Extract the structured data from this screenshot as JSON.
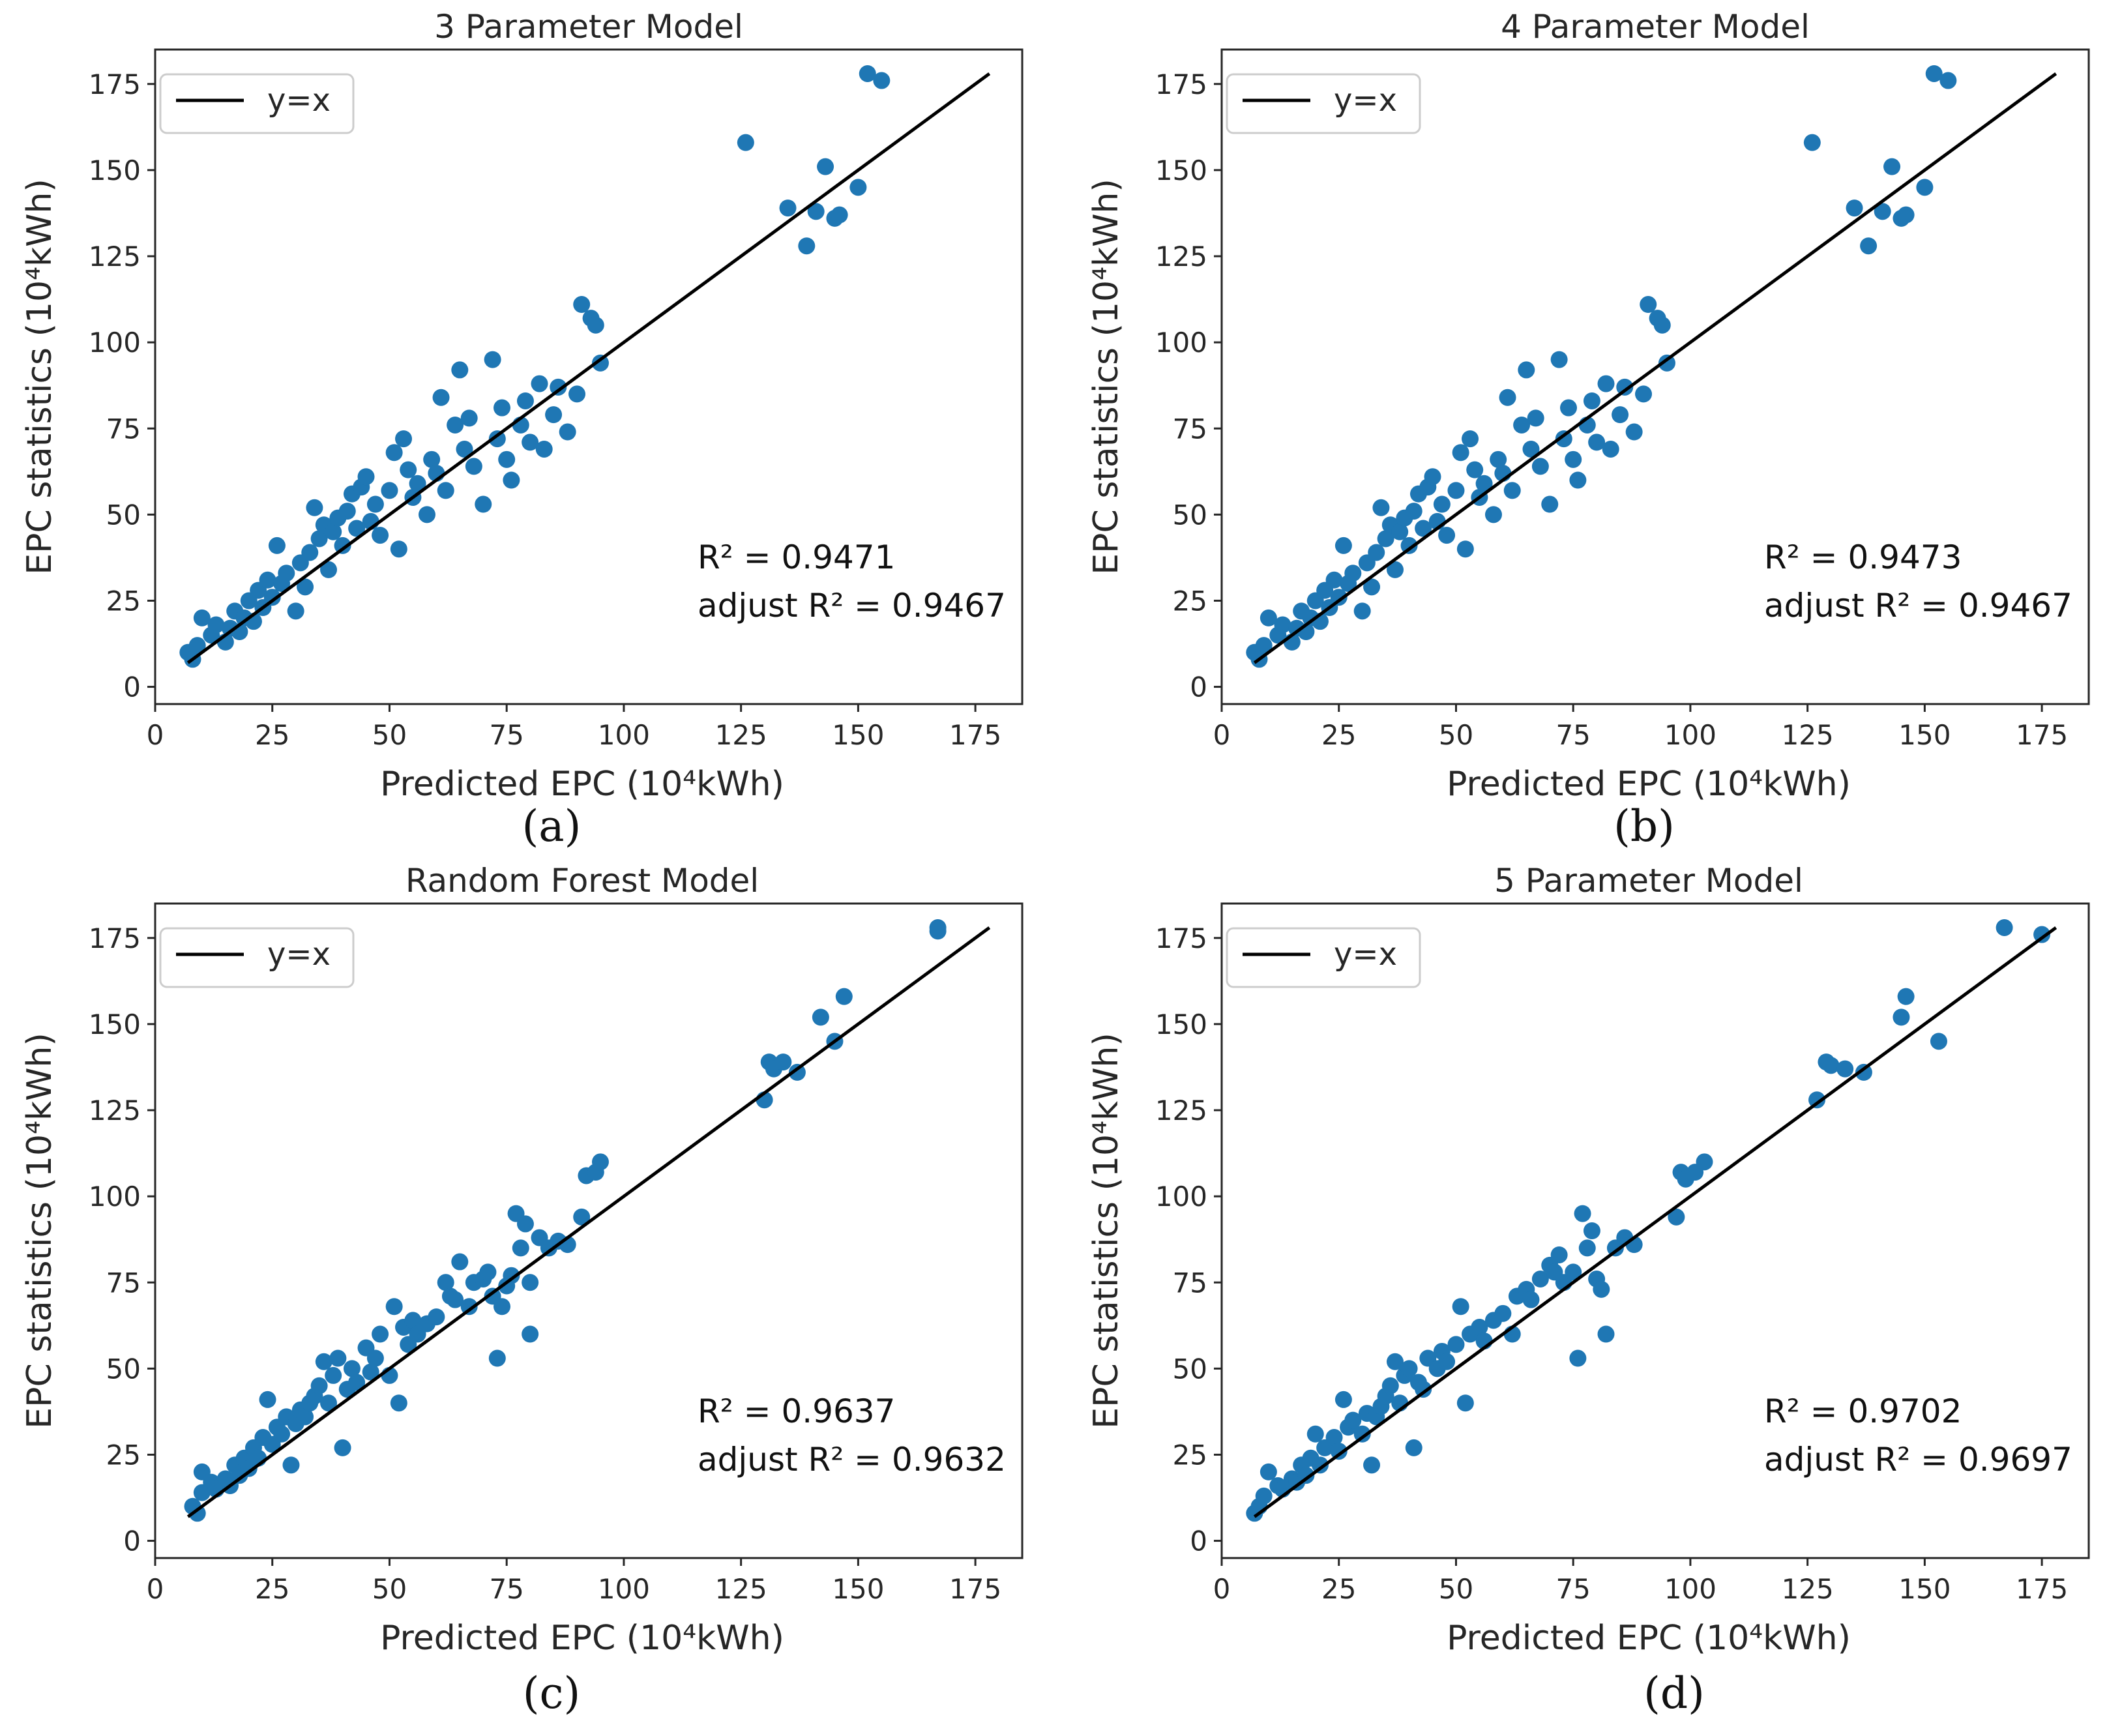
{
  "figure": {
    "panels": [
      {
        "caption": "(a)",
        "stats": {
          "r2": "R² = 0.9471",
          "adj": "adjust R² = 0.9467"
        }
      },
      {
        "caption": "(b)",
        "stats": {
          "r2": "R² = 0.9473",
          "adj": "adjust R² = 0.9467"
        }
      },
      {
        "caption": "(c)",
        "stats": {
          "r2": "R² = 0.9637",
          "adj": "adjust R² = 0.9632"
        }
      },
      {
        "caption": "(d)",
        "stats": {
          "r2": "R² = 0.9702",
          "adj": "adjust R² = 0.9697"
        }
      }
    ]
  },
  "colors": {
    "points": "#1f77b4",
    "line": "#000000",
    "axes": "#262626"
  },
  "chart_data": [
    {
      "type": "scatter",
      "title": "3 Parameter Model",
      "xlabel": "Predicted EPC (10⁴kWh)",
      "ylabel": "EPC statistics (10⁴kWh)",
      "xlim": [
        0,
        185
      ],
      "ylim": [
        -5,
        185
      ],
      "xticks": [
        0,
        25,
        50,
        75,
        100,
        125,
        150,
        175
      ],
      "yticks": [
        0,
        25,
        50,
        75,
        100,
        125,
        150,
        175
      ],
      "legend": {
        "label": "y=x",
        "position": "upper-left"
      },
      "reference_line": {
        "x": [
          7,
          178
        ],
        "y": [
          7,
          178
        ]
      },
      "points": [
        [
          7,
          10
        ],
        [
          8,
          8
        ],
        [
          9,
          12
        ],
        [
          10,
          20
        ],
        [
          12,
          15
        ],
        [
          13,
          18
        ],
        [
          15,
          13
        ],
        [
          16,
          17
        ],
        [
          17,
          22
        ],
        [
          18,
          16
        ],
        [
          19,
          20
        ],
        [
          20,
          25
        ],
        [
          21,
          19
        ],
        [
          22,
          28
        ],
        [
          23,
          23
        ],
        [
          24,
          31
        ],
        [
          25,
          26
        ],
        [
          26,
          41
        ],
        [
          27,
          30
        ],
        [
          28,
          33
        ],
        [
          30,
          22
        ],
        [
          31,
          36
        ],
        [
          32,
          29
        ],
        [
          33,
          39
        ],
        [
          34,
          52
        ],
        [
          35,
          43
        ],
        [
          36,
          47
        ],
        [
          37,
          34
        ],
        [
          38,
          45
        ],
        [
          39,
          49
        ],
        [
          40,
          41
        ],
        [
          41,
          51
        ],
        [
          42,
          56
        ],
        [
          43,
          46
        ],
        [
          44,
          58
        ],
        [
          45,
          61
        ],
        [
          46,
          48
        ],
        [
          47,
          53
        ],
        [
          48,
          44
        ],
        [
          50,
          57
        ],
        [
          51,
          68
        ],
        [
          52,
          40
        ],
        [
          53,
          72
        ],
        [
          54,
          63
        ],
        [
          55,
          55
        ],
        [
          56,
          59
        ],
        [
          58,
          50
        ],
        [
          59,
          66
        ],
        [
          60,
          62
        ],
        [
          61,
          84
        ],
        [
          62,
          57
        ],
        [
          64,
          76
        ],
        [
          65,
          92
        ],
        [
          66,
          69
        ],
        [
          67,
          78
        ],
        [
          68,
          64
        ],
        [
          70,
          53
        ],
        [
          72,
          95
        ],
        [
          73,
          72
        ],
        [
          74,
          81
        ],
        [
          75,
          66
        ],
        [
          76,
          60
        ],
        [
          78,
          76
        ],
        [
          79,
          83
        ],
        [
          80,
          71
        ],
        [
          82,
          88
        ],
        [
          83,
          69
        ],
        [
          85,
          79
        ],
        [
          86,
          87
        ],
        [
          88,
          74
        ],
        [
          90,
          85
        ],
        [
          91,
          111
        ],
        [
          93,
          107
        ],
        [
          94,
          105
        ],
        [
          95,
          94
        ],
        [
          126,
          158
        ],
        [
          135,
          139
        ],
        [
          139,
          128
        ],
        [
          141,
          138
        ],
        [
          143,
          151
        ],
        [
          145,
          136
        ],
        [
          146,
          137
        ],
        [
          150,
          145
        ],
        [
          152,
          178
        ],
        [
          155,
          176
        ]
      ]
    },
    {
      "type": "scatter",
      "title": "4 Parameter Model",
      "xlabel": "Predicted EPC (10⁴kWh)",
      "ylabel": "EPC statistics (10⁴kWh)",
      "xlim": [
        0,
        185
      ],
      "ylim": [
        -5,
        185
      ],
      "xticks": [
        0,
        25,
        50,
        75,
        100,
        125,
        150,
        175
      ],
      "yticks": [
        0,
        25,
        50,
        75,
        100,
        125,
        150,
        175
      ],
      "legend": {
        "label": "y=x",
        "position": "upper-left"
      },
      "reference_line": {
        "x": [
          7,
          178
        ],
        "y": [
          7,
          178
        ]
      },
      "points": [
        [
          7,
          10
        ],
        [
          8,
          8
        ],
        [
          9,
          12
        ],
        [
          10,
          20
        ],
        [
          12,
          15
        ],
        [
          13,
          18
        ],
        [
          15,
          13
        ],
        [
          16,
          17
        ],
        [
          17,
          22
        ],
        [
          18,
          16
        ],
        [
          19,
          20
        ],
        [
          20,
          25
        ],
        [
          21,
          19
        ],
        [
          22,
          28
        ],
        [
          23,
          23
        ],
        [
          24,
          31
        ],
        [
          25,
          26
        ],
        [
          26,
          41
        ],
        [
          27,
          30
        ],
        [
          28,
          33
        ],
        [
          30,
          22
        ],
        [
          31,
          36
        ],
        [
          32,
          29
        ],
        [
          33,
          39
        ],
        [
          34,
          52
        ],
        [
          35,
          43
        ],
        [
          36,
          47
        ],
        [
          37,
          34
        ],
        [
          38,
          45
        ],
        [
          39,
          49
        ],
        [
          40,
          41
        ],
        [
          41,
          51
        ],
        [
          42,
          56
        ],
        [
          43,
          46
        ],
        [
          44,
          58
        ],
        [
          45,
          61
        ],
        [
          46,
          48
        ],
        [
          47,
          53
        ],
        [
          48,
          44
        ],
        [
          50,
          57
        ],
        [
          51,
          68
        ],
        [
          52,
          40
        ],
        [
          53,
          72
        ],
        [
          54,
          63
        ],
        [
          55,
          55
        ],
        [
          56,
          59
        ],
        [
          58,
          50
        ],
        [
          59,
          66
        ],
        [
          60,
          62
        ],
        [
          61,
          84
        ],
        [
          62,
          57
        ],
        [
          64,
          76
        ],
        [
          65,
          92
        ],
        [
          66,
          69
        ],
        [
          67,
          78
        ],
        [
          68,
          64
        ],
        [
          70,
          53
        ],
        [
          72,
          95
        ],
        [
          73,
          72
        ],
        [
          74,
          81
        ],
        [
          75,
          66
        ],
        [
          76,
          60
        ],
        [
          78,
          76
        ],
        [
          79,
          83
        ],
        [
          80,
          71
        ],
        [
          82,
          88
        ],
        [
          83,
          69
        ],
        [
          85,
          79
        ],
        [
          86,
          87
        ],
        [
          88,
          74
        ],
        [
          90,
          85
        ],
        [
          91,
          111
        ],
        [
          93,
          107
        ],
        [
          94,
          105
        ],
        [
          95,
          94
        ],
        [
          126,
          158
        ],
        [
          135,
          139
        ],
        [
          138,
          128
        ],
        [
          141,
          138
        ],
        [
          143,
          151
        ],
        [
          145,
          136
        ],
        [
          146,
          137
        ],
        [
          150,
          145
        ],
        [
          152,
          178
        ],
        [
          155,
          176
        ]
      ]
    },
    {
      "type": "scatter",
      "title": "Random Forest Model",
      "xlabel": "Predicted EPC (10⁴kWh)",
      "ylabel": "EPC statistics (10⁴kWh)",
      "xlim": [
        0,
        185
      ],
      "ylim": [
        -5,
        185
      ],
      "xticks": [
        0,
        25,
        50,
        75,
        100,
        125,
        150,
        175
      ],
      "yticks": [
        0,
        25,
        50,
        75,
        100,
        125,
        150,
        175
      ],
      "legend": {
        "label": "y=x",
        "position": "upper-left"
      },
      "reference_line": {
        "x": [
          7,
          178
        ],
        "y": [
          7,
          178
        ]
      },
      "points": [
        [
          8,
          10
        ],
        [
          9,
          8
        ],
        [
          10,
          14
        ],
        [
          10,
          20
        ],
        [
          12,
          17
        ],
        [
          13,
          15
        ],
        [
          15,
          18
        ],
        [
          16,
          16
        ],
        [
          17,
          22
        ],
        [
          18,
          19
        ],
        [
          19,
          24
        ],
        [
          20,
          21
        ],
        [
          21,
          27
        ],
        [
          22,
          24
        ],
        [
          23,
          30
        ],
        [
          24,
          41
        ],
        [
          25,
          28
        ],
        [
          26,
          33
        ],
        [
          27,
          31
        ],
        [
          28,
          36
        ],
        [
          29,
          22
        ],
        [
          30,
          34
        ],
        [
          31,
          38
        ],
        [
          32,
          36
        ],
        [
          33,
          40
        ],
        [
          34,
          42
        ],
        [
          35,
          45
        ],
        [
          36,
          52
        ],
        [
          37,
          40
        ],
        [
          38,
          48
        ],
        [
          39,
          53
        ],
        [
          40,
          27
        ],
        [
          41,
          44
        ],
        [
          42,
          50
        ],
        [
          43,
          46
        ],
        [
          45,
          56
        ],
        [
          46,
          49
        ],
        [
          47,
          53
        ],
        [
          48,
          60
        ],
        [
          50,
          48
        ],
        [
          51,
          68
        ],
        [
          52,
          40
        ],
        [
          53,
          62
        ],
        [
          54,
          57
        ],
        [
          55,
          64
        ],
        [
          56,
          60
        ],
        [
          58,
          63
        ],
        [
          60,
          65
        ],
        [
          62,
          75
        ],
        [
          63,
          71
        ],
        [
          64,
          70
        ],
        [
          65,
          81
        ],
        [
          67,
          68
        ],
        [
          68,
          75
        ],
        [
          70,
          76
        ],
        [
          71,
          78
        ],
        [
          72,
          71
        ],
        [
          73,
          53
        ],
        [
          74,
          68
        ],
        [
          75,
          74
        ],
        [
          76,
          77
        ],
        [
          77,
          95
        ],
        [
          78,
          85
        ],
        [
          79,
          92
        ],
        [
          80,
          60
        ],
        [
          80,
          75
        ],
        [
          82,
          88
        ],
        [
          84,
          85
        ],
        [
          86,
          87
        ],
        [
          88,
          86
        ],
        [
          91,
          94
        ],
        [
          92,
          106
        ],
        [
          94,
          107
        ],
        [
          95,
          110
        ],
        [
          130,
          128
        ],
        [
          131,
          139
        ],
        [
          132,
          137
        ],
        [
          134,
          139
        ],
        [
          137,
          136
        ],
        [
          142,
          152
        ],
        [
          145,
          145
        ],
        [
          147,
          158
        ],
        [
          167,
          177
        ],
        [
          167,
          178
        ]
      ]
    },
    {
      "type": "scatter",
      "title": "5 Parameter Model",
      "xlabel": "Predicted EPC (10⁴kWh)",
      "ylabel": "EPC statistics (10⁴kWh)",
      "xlim": [
        0,
        185
      ],
      "ylim": [
        -5,
        185
      ],
      "xticks": [
        0,
        25,
        50,
        75,
        100,
        125,
        150,
        175
      ],
      "yticks": [
        0,
        25,
        50,
        75,
        100,
        125,
        150,
        175
      ],
      "legend": {
        "label": "y=x",
        "position": "upper-left"
      },
      "reference_line": {
        "x": [
          7,
          178
        ],
        "y": [
          7,
          178
        ]
      },
      "points": [
        [
          7,
          8
        ],
        [
          8,
          10
        ],
        [
          9,
          13
        ],
        [
          10,
          20
        ],
        [
          12,
          16
        ],
        [
          13,
          15
        ],
        [
          15,
          18
        ],
        [
          16,
          17
        ],
        [
          17,
          22
        ],
        [
          18,
          19
        ],
        [
          19,
          24
        ],
        [
          20,
          31
        ],
        [
          21,
          22
        ],
        [
          22,
          27
        ],
        [
          24,
          30
        ],
        [
          25,
          26
        ],
        [
          26,
          41
        ],
        [
          27,
          33
        ],
        [
          28,
          35
        ],
        [
          30,
          31
        ],
        [
          31,
          37
        ],
        [
          32,
          22
        ],
        [
          33,
          36
        ],
        [
          34,
          39
        ],
        [
          35,
          42
        ],
        [
          36,
          45
        ],
        [
          37,
          52
        ],
        [
          38,
          40
        ],
        [
          39,
          48
        ],
        [
          40,
          50
        ],
        [
          41,
          27
        ],
        [
          42,
          46
        ],
        [
          43,
          44
        ],
        [
          44,
          53
        ],
        [
          46,
          50
        ],
        [
          47,
          55
        ],
        [
          48,
          52
        ],
        [
          50,
          57
        ],
        [
          51,
          68
        ],
        [
          52,
          40
        ],
        [
          53,
          60
        ],
        [
          55,
          62
        ],
        [
          56,
          58
        ],
        [
          58,
          64
        ],
        [
          60,
          66
        ],
        [
          62,
          60
        ],
        [
          63,
          71
        ],
        [
          65,
          73
        ],
        [
          66,
          70
        ],
        [
          68,
          76
        ],
        [
          70,
          80
        ],
        [
          71,
          78
        ],
        [
          72,
          83
        ],
        [
          73,
          75
        ],
        [
          75,
          78
        ],
        [
          76,
          53
        ],
        [
          77,
          95
        ],
        [
          78,
          85
        ],
        [
          79,
          90
        ],
        [
          80,
          76
        ],
        [
          81,
          73
        ],
        [
          82,
          60
        ],
        [
          84,
          85
        ],
        [
          86,
          88
        ],
        [
          88,
          86
        ],
        [
          97,
          94
        ],
        [
          98,
          107
        ],
        [
          99,
          105
        ],
        [
          101,
          107
        ],
        [
          103,
          110
        ],
        [
          127,
          128
        ],
        [
          129,
          139
        ],
        [
          130,
          138
        ],
        [
          133,
          137
        ],
        [
          137,
          136
        ],
        [
          145,
          152
        ],
        [
          146,
          158
        ],
        [
          153,
          145
        ],
        [
          167,
          178
        ],
        [
          175,
          176
        ]
      ]
    }
  ]
}
